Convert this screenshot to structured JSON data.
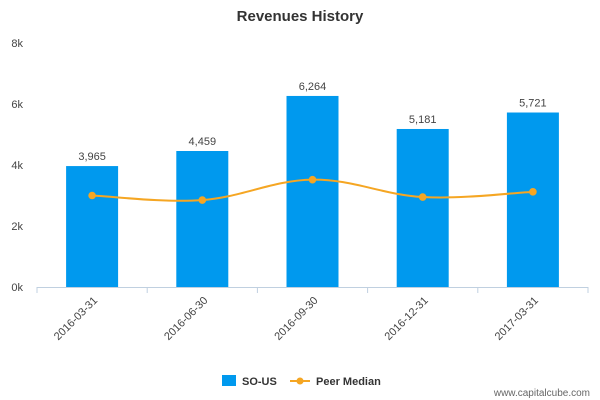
{
  "chart_data": {
    "type": "bar",
    "title": "Revenues History",
    "categories": [
      "2016-03-31",
      "2016-06-30",
      "2016-09-30",
      "2016-12-31",
      "2017-03-31"
    ],
    "series": [
      {
        "name": "SO-US",
        "type": "bar",
        "color": "#0099ee",
        "values": [
          3965,
          4459,
          6264,
          5181,
          5721
        ],
        "labels": [
          "3,965",
          "4,459",
          "6,264",
          "5,181",
          "5,721"
        ]
      },
      {
        "name": "Peer Median",
        "type": "line",
        "color": "#f5a623",
        "values": [
          3000,
          2850,
          3520,
          2950,
          3120
        ]
      }
    ],
    "ylim": [
      0,
      8000
    ],
    "yticks": [
      0,
      2000,
      4000,
      6000,
      8000
    ],
    "ytick_labels": [
      "0k",
      "2k",
      "4k",
      "6k",
      "8k"
    ],
    "grid": false,
    "legend_position": "bottom-center"
  },
  "watermark": "www.capitalcube.com"
}
